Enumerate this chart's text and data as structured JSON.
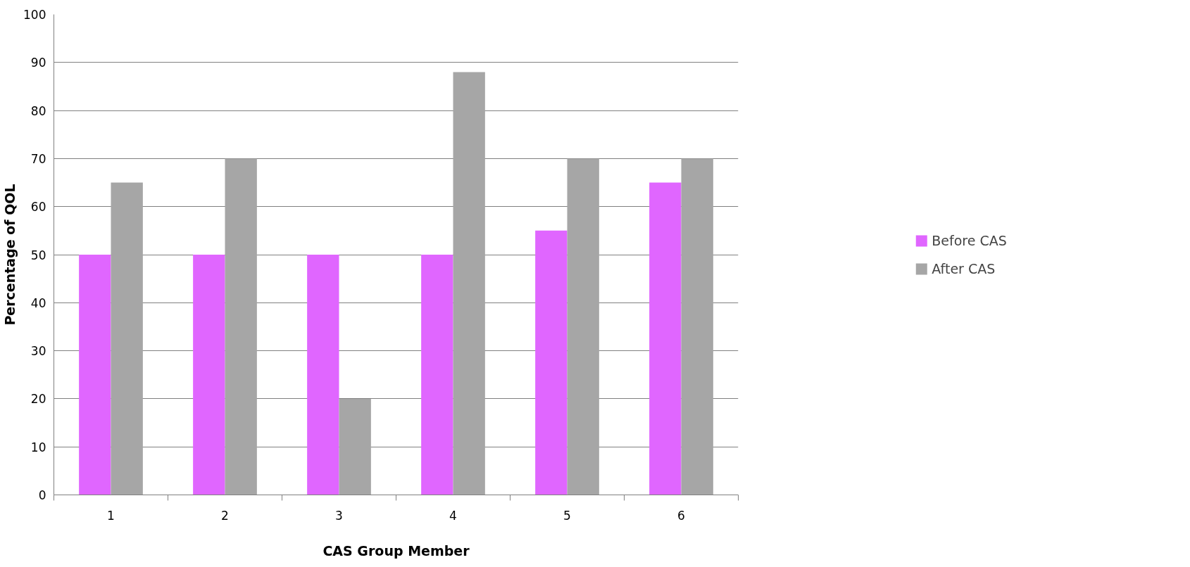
{
  "chart_data": {
    "type": "bar",
    "xlabel": "CAS Group Member",
    "ylabel": "Percentage of QOL",
    "categories": [
      "1",
      "2",
      "3",
      "4",
      "5",
      "6"
    ],
    "series": [
      {
        "name": "Before CAS",
        "color": "#e066ff",
        "values": [
          50,
          50,
          50,
          50,
          55,
          65
        ]
      },
      {
        "name": "After CAS",
        "color": "#a6a6a6",
        "values": [
          65,
          70,
          20,
          88,
          70,
          70
        ]
      }
    ],
    "ylim": [
      0,
      100
    ],
    "yticks": [
      0,
      10,
      20,
      30,
      40,
      50,
      60,
      70,
      80,
      90,
      100
    ],
    "grid": "y",
    "legend": "right"
  }
}
